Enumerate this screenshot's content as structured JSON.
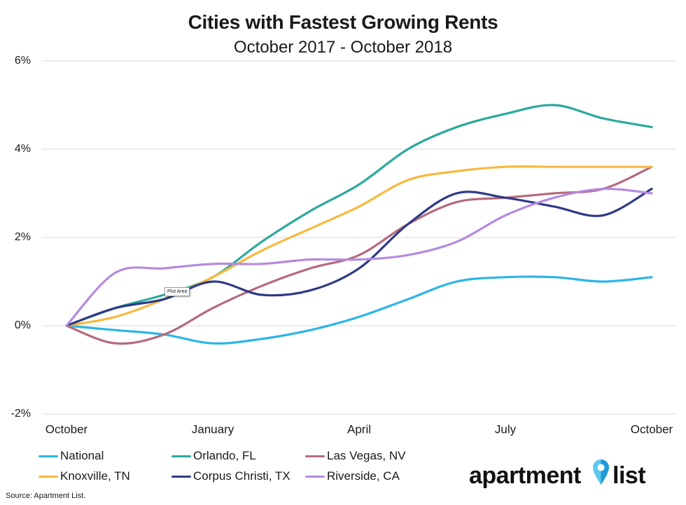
{
  "chart_data": {
    "type": "line",
    "title": "Cities with Fastest Growing Rents",
    "subtitle": "October 2017 - October 2018",
    "xlabel": "",
    "ylabel": "",
    "x": [
      "2017-10",
      "2017-11",
      "2017-12",
      "2018-01",
      "2018-02",
      "2018-03",
      "2018-04",
      "2018-05",
      "2018-06",
      "2018-07",
      "2018-08",
      "2018-09",
      "2018-10"
    ],
    "x_ticks": [
      {
        "x": "2017-10",
        "label": "October"
      },
      {
        "x": "2018-01",
        "label": "January"
      },
      {
        "x": "2018-04",
        "label": "April"
      },
      {
        "x": "2018-07",
        "label": "July"
      },
      {
        "x": "2018-10",
        "label": "October"
      }
    ],
    "y_ticks": [
      {
        "value": 6,
        "label": "6%"
      },
      {
        "value": 4,
        "label": "4%"
      },
      {
        "value": 2,
        "label": "2%"
      },
      {
        "value": 0,
        "label": "0%"
      },
      {
        "value": -2,
        "label": "-2%"
      }
    ],
    "ylim": [
      -2,
      6
    ],
    "grid": "horizontal",
    "legend_position": "bottom",
    "series": [
      {
        "name": "National",
        "color": "#2bb5e8",
        "values": [
          0,
          -0.1,
          -0.2,
          -0.4,
          -0.3,
          -0.1,
          0.2,
          0.6,
          1.0,
          1.1,
          1.1,
          1.0,
          1.1
        ]
      },
      {
        "name": "Orlando, FL",
        "color": "#2aa99b",
        "values": [
          0,
          0.4,
          0.7,
          1.1,
          1.9,
          2.6,
          3.2,
          4.0,
          4.5,
          4.8,
          5.0,
          4.7,
          4.5
        ]
      },
      {
        "name": "Las Vegas, NV",
        "color": "#b56a7c",
        "values": [
          0,
          -0.4,
          -0.2,
          0.4,
          0.9,
          1.3,
          1.6,
          2.3,
          2.8,
          2.9,
          3.0,
          3.1,
          3.6
        ]
      },
      {
        "name": "Knoxville, TN",
        "color": "#f8b83c",
        "values": [
          0,
          0.2,
          0.6,
          1.1,
          1.7,
          2.2,
          2.7,
          3.3,
          3.5,
          3.6,
          3.6,
          3.6,
          3.6
        ]
      },
      {
        "name": "Corpus Christi, TX",
        "color": "#2e3a87",
        "values": [
          0,
          0.4,
          0.6,
          1.0,
          0.7,
          0.8,
          1.3,
          2.3,
          3.0,
          2.9,
          2.7,
          2.5,
          3.1
        ]
      },
      {
        "name": "Riverside, CA",
        "color": "#b48ae0",
        "values": [
          0,
          1.2,
          1.3,
          1.4,
          1.4,
          1.5,
          1.5,
          1.6,
          1.9,
          2.5,
          2.9,
          3.1,
          3.0
        ]
      }
    ]
  },
  "annotations": {
    "tooltip": "Plot Area"
  },
  "footer": {
    "source": "Source: Apartment List."
  },
  "logo": {
    "word1": "apartment",
    "word2": "list",
    "icon": "map-pin-icon",
    "pin_light": "#5cc8f0",
    "pin_dark": "#1f9ad6"
  }
}
